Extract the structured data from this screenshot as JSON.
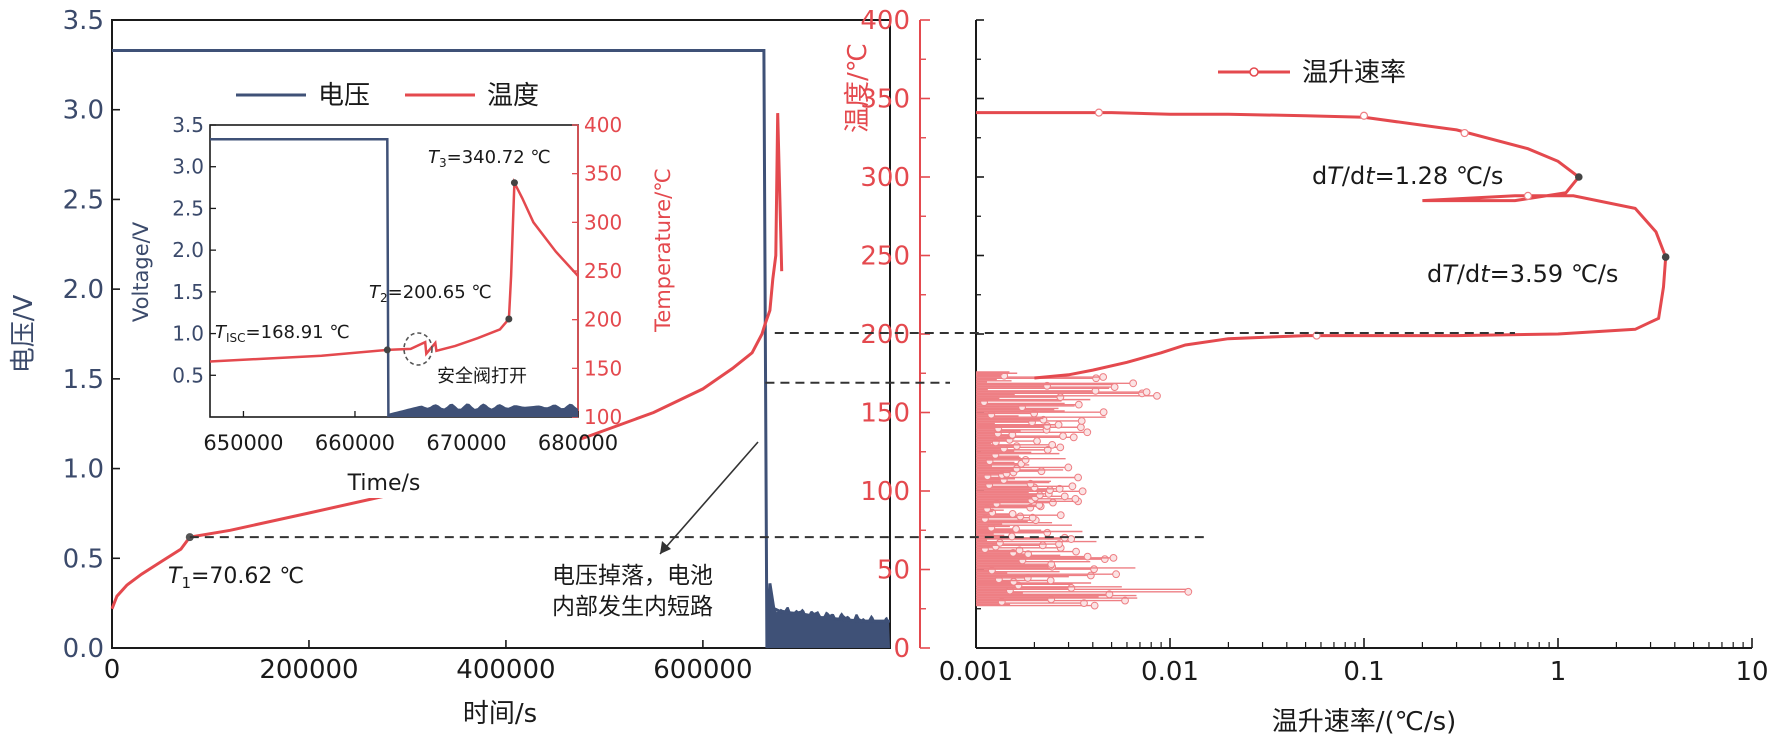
{
  "colors": {
    "voltage": "#3f5177",
    "temperature": "#e4494e",
    "rate_fill": "#ee7f84",
    "dark": "#1a1a1a"
  },
  "chart_data": [
    {
      "id": "main",
      "type": "line",
      "xlabel": "时间/s",
      "ylabel_left": "电压/V",
      "ylabel_right": "温度/℃",
      "xlim": [
        0,
        790000
      ],
      "ylim_left": [
        0,
        3.5
      ],
      "ylim_right": [
        0,
        400
      ],
      "xticks": [
        0,
        200000,
        400000,
        600000
      ],
      "yticks_left": [
        0.0,
        0.5,
        1.0,
        1.5,
        2.0,
        2.5,
        3.0,
        3.5
      ],
      "yticks_right": [
        0,
        50,
        100,
        150,
        200,
        250,
        300,
        350,
        400
      ],
      "series": [
        {
          "name": "电压",
          "axis": "left",
          "x": [
            0,
            662000,
            665000,
            668000,
            672000,
            680000,
            700000,
            720000,
            760000,
            790000
          ],
          "y": [
            3.33,
            3.33,
            0.0,
            0.36,
            0.22,
            0.2,
            0.19,
            0.17,
            0.15,
            0.15
          ]
        },
        {
          "name": "温度",
          "axis": "right",
          "x": [
            0,
            5000,
            15000,
            30000,
            50000,
            70000,
            79000,
            120000,
            200000,
            300000,
            400000,
            480000,
            550000,
            600000,
            630000,
            650000,
            660000,
            663000,
            668000,
            671000,
            674000,
            676000,
            680000
          ],
          "y": [
            25,
            33,
            40,
            47,
            55,
            63,
            70.62,
            75,
            86,
            100,
            118,
            134,
            150,
            165,
            178,
            188,
            200,
            206,
            215,
            235,
            250,
            340.72,
            240
          ]
        }
      ],
      "legend": [
        "电压",
        "温度"
      ],
      "legend_position": "top-left",
      "annotations": {
        "t1": {
          "prefix": "T",
          "sub": "1",
          "value": "=70.62 ℃"
        },
        "callout": [
          "电压掉落，电池",
          "内部发生内短路"
        ]
      }
    },
    {
      "id": "inset",
      "type": "line",
      "xlabel": "Time/s",
      "ylabel_left": "Voltage/V",
      "ylabel_right": "Temperature/℃",
      "xlim": [
        647000,
        680000
      ],
      "ylim_left": [
        0,
        3.5
      ],
      "ylim_right": [
        100,
        400
      ],
      "xticks": [
        650000,
        660000,
        670000,
        680000
      ],
      "yticks_left": [
        0.5,
        1.0,
        1.5,
        2.0,
        2.5,
        3.0,
        3.5
      ],
      "yticks_right": [
        100,
        150,
        200,
        250,
        300,
        350,
        400
      ],
      "series": [
        {
          "name": "Voltage",
          "axis": "left",
          "x": [
            647000,
            662900,
            663000,
            666000,
            670000,
            674000,
            678000,
            680000
          ],
          "y": [
            3.33,
            3.33,
            0.0,
            0.15,
            0.12,
            0.12,
            0.1,
            0.1
          ]
        },
        {
          "name": "Temperature",
          "axis": "right",
          "x": [
            647000,
            652000,
            657000,
            662900,
            665000,
            666300,
            666400,
            667200,
            667300,
            669000,
            671000,
            673000,
            673800,
            674000,
            674300,
            675000,
            676000,
            678000,
            680000
          ],
          "y": [
            157,
            160,
            163,
            168.91,
            170,
            177,
            165,
            176,
            168,
            173,
            181,
            190,
            200.65,
            245,
            340.72,
            325,
            300,
            270,
            245
          ]
        }
      ],
      "points": [
        {
          "x": 662900,
          "y": 168.91
        },
        {
          "x": 673800,
          "y": 200.65
        },
        {
          "x": 674300,
          "y": 340.72
        }
      ],
      "annotations": {
        "tisc": {
          "prefix": "T",
          "sub": "ISC",
          "value": "=168.91 ℃"
        },
        "t2": {
          "prefix": "T",
          "sub": "2",
          "value": "=200.65 ℃"
        },
        "t3": {
          "prefix": "T",
          "sub": "3",
          "value": "=340.72 ℃"
        },
        "valve": "安全阀打开"
      }
    },
    {
      "id": "rate",
      "type": "line",
      "xscale": "log",
      "xlabel": "温升速率/(℃/s)",
      "xlim": [
        0.001,
        10
      ],
      "ylim": [
        0,
        400
      ],
      "xticks": [
        0.001,
        0.01,
        0.1,
        1,
        10
      ],
      "xtick_labels": [
        "0.001",
        "0.01",
        "0.1",
        "1",
        "10"
      ],
      "legend": [
        "温升速率"
      ],
      "legend_position": "top-left",
      "series": [
        {
          "name": "温升速率",
          "x": [
            0.001,
            0.002,
            0.005,
            0.01,
            0.02,
            0.05,
            0.1,
            0.3,
            0.7,
            1.0,
            1.28,
            1.1,
            0.6,
            0.2,
            0.6,
            1.2,
            2.5,
            3.2,
            3.59,
            3.5,
            3.3,
            2.5,
            1.0,
            0.3,
            0.05,
            0.02,
            0.012,
            0.009,
            0.006,
            0.004,
            0.003,
            0.002
          ],
          "y": [
            341,
            341,
            341,
            340,
            340,
            339,
            338,
            330,
            318,
            310,
            300,
            290,
            285,
            285,
            288,
            288,
            280,
            265,
            249,
            230,
            210,
            203,
            200,
            199,
            199,
            197,
            193,
            188,
            182,
            177,
            174,
            172
          ]
        }
      ],
      "scatter_noise": {
        "y_range": [
          27,
          176
        ],
        "x_min": 0.001,
        "description_levels": [
          {
            "y": 30,
            "x": 0.019
          },
          {
            "y": 55,
            "x": 0.006
          },
          {
            "y": 80,
            "x": 0.004
          },
          {
            "y": 110,
            "x": 0.0035
          },
          {
            "y": 130,
            "x": 0.003
          },
          {
            "y": 160,
            "x": 0.009
          },
          {
            "y": 170,
            "x": 0.016
          }
        ]
      },
      "points": [
        {
          "x": 1.28,
          "y": 300
        },
        {
          "x": 3.59,
          "y": 249
        }
      ],
      "annotations": {
        "r1": {
          "a": "d",
          "b": "T",
          "c": "/d",
          "d": "t",
          "e": "=1.28 ℃/s"
        },
        "r2": {
          "a": "d",
          "b": "T",
          "c": "/d",
          "d": "t",
          "e": "=3.59 ℃/s"
        }
      }
    }
  ]
}
